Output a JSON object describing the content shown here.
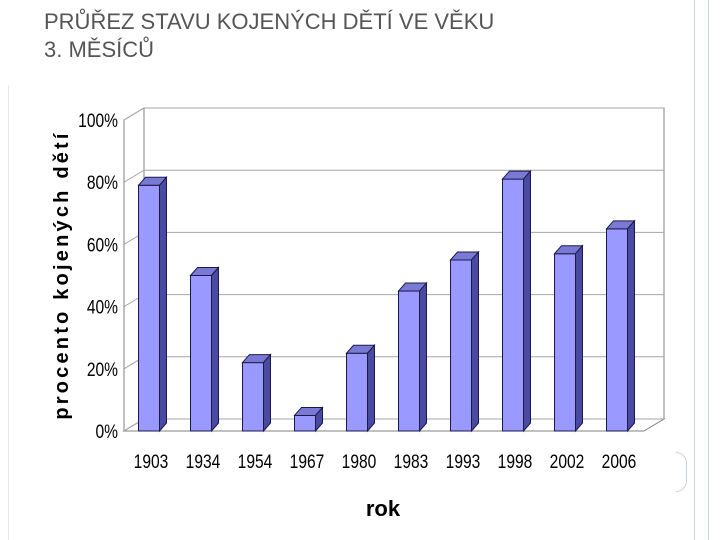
{
  "slide": {
    "title_line1": "PRŮŘEZ STAVU KOJENÝCH DĚTÍ VE VĚKU",
    "title_line2": "3. MĚSÍCŮ"
  },
  "chart_data": {
    "type": "bar",
    "categories": [
      "1903",
      "1934",
      "1954",
      "1967",
      "1980",
      "1983",
      "1993",
      "1998",
      "2002",
      "2006"
    ],
    "values": [
      79,
      50,
      22,
      5,
      25,
      45,
      55,
      81,
      57,
      65
    ],
    "xlabel": "rok",
    "ylabel": "procento kojených dětí",
    "ylim": [
      0,
      100
    ],
    "yticks": [
      "0%",
      "20%",
      "40%",
      "60%",
      "80%",
      "100%"
    ],
    "ytick_values": [
      0,
      20,
      40,
      60,
      80,
      100
    ],
    "grid": true,
    "style": "3d",
    "colors": {
      "bar_front": "#9999ff",
      "bar_top": "#7a7ad6",
      "bar_side": "#4a4aa0",
      "bar_edge": "#1a1a4a",
      "wall": "#ffffff",
      "gridline": "#a6a6a6"
    }
  }
}
